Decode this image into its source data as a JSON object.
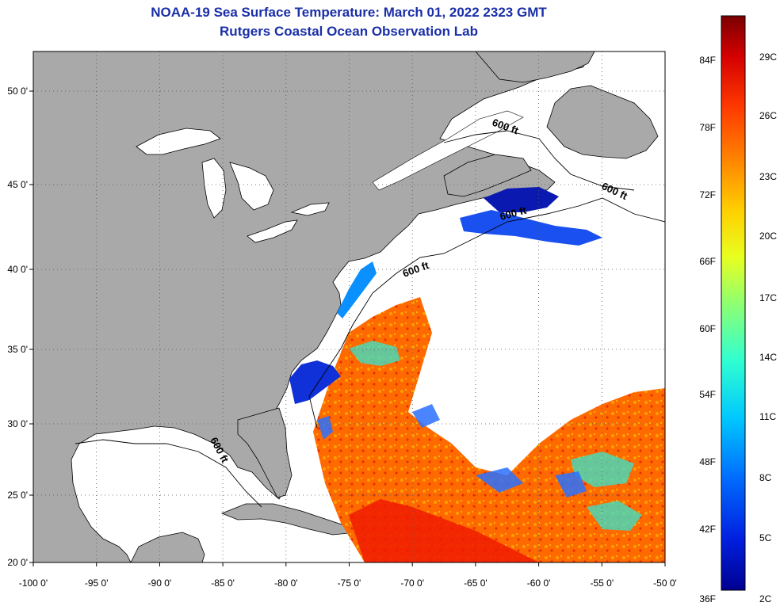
{
  "title": {
    "line1": "NOAA-19 Sea Surface Temperature:  March 01, 2022 2323 GMT",
    "line2": "Rutgers Coastal Ocean Observation Lab"
  },
  "axes": {
    "x_ticks": [
      "-100 0'",
      "-95 0'",
      "-90 0'",
      "-85 0'",
      "-80 0'",
      "-75 0'",
      "-70 0'",
      "-65 0'",
      "-60 0'",
      "-55 0'",
      "-50 0'"
    ],
    "y_ticks": [
      "50 0'",
      "45 0'",
      "40 0'",
      "35 0'",
      "30 0'",
      "25 0'",
      "20 0'"
    ],
    "lon_range": [
      -100,
      -50
    ],
    "lat_range": [
      20,
      52
    ]
  },
  "contour_label": "600 ft",
  "colorbar": {
    "fahrenheit": [
      "84F",
      "78F",
      "72F",
      "66F",
      "60F",
      "54F",
      "48F",
      "42F",
      "36F"
    ],
    "celsius": [
      "29C",
      "26C",
      "23C",
      "20C",
      "17C",
      "14C",
      "11C",
      "8C",
      "5C",
      "2C"
    ],
    "colors": [
      "#7a0000",
      "#d40000",
      "#ff3a00",
      "#ff8c00",
      "#ffd000",
      "#e8ff20",
      "#90ff70",
      "#30ffd0",
      "#00c8ff",
      "#0070ff",
      "#0020e0",
      "#000090"
    ]
  },
  "colors": {
    "land": "#a9a9a9",
    "ocean_unsampled": "#ffffff",
    "grid": "#555555"
  }
}
